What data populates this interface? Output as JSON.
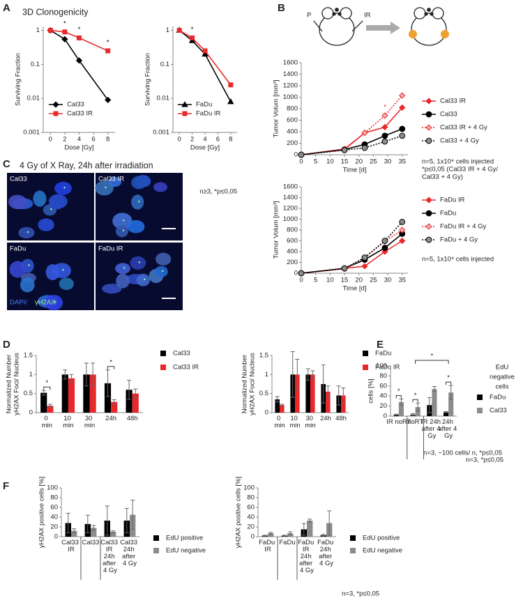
{
  "panel_labels": [
    "A",
    "B",
    "C",
    "D",
    "E",
    "F"
  ],
  "diagram": {
    "labels": [
      "P",
      "IR"
    ]
  },
  "micrographs": {
    "title": "4 Gy of X Ray, 24h after irradiation",
    "labels": [
      "Cal33",
      "Cal33 IR",
      "FaDu",
      "FaDu IR"
    ],
    "stain": [
      "DAPI/",
      "γH2AX"
    ]
  },
  "chart_data": [
    {
      "type": "line",
      "title": "3D Clonogenicity",
      "x": [
        0,
        2,
        4,
        8
      ],
      "xlim": [
        -1,
        9
      ],
      "xticks": [
        0,
        2,
        4,
        6,
        8
      ],
      "yscale": "log",
      "ylim": [
        0.001,
        1.3
      ],
      "yticks": [
        0.001,
        0.01,
        0.1,
        1
      ],
      "xlabel": "Dose [Gy]",
      "ylabel": "Surviving Fraction",
      "legend": "lower left",
      "significance_marker": "*",
      "significant": [
        false,
        true,
        true,
        true
      ],
      "significance_color": "#000000",
      "series": [
        {
          "name": "Cal33",
          "color": "#000000",
          "marker": "diamond",
          "marker_fill": "#000000",
          "values": [
            1,
            0.55,
            0.13,
            0.009
          ]
        },
        {
          "name": "Cal33 IR",
          "color": "#e8282b",
          "marker": "square",
          "marker_fill": "#e8282b",
          "values": [
            1,
            0.9,
            0.6,
            0.25
          ]
        }
      ]
    },
    {
      "type": "line",
      "x": [
        0,
        2,
        4,
        8
      ],
      "xlim": [
        -1,
        9
      ],
      "xticks": [
        0,
        2,
        4,
        6,
        8
      ],
      "yscale": "log",
      "ylim": [
        0.001,
        1.3
      ],
      "yticks": [
        0.001,
        0.01,
        0.1,
        1
      ],
      "xlabel": "Dose [Gy]",
      "ylabel": "Surviving Fraction",
      "legend": "lower left",
      "significance_marker": "*",
      "significant": [
        false,
        true,
        false,
        false
      ],
      "significance_color": "#000000",
      "note": [
        "n≥3, *p≤0,05"
      ],
      "series": [
        {
          "name": "FaDu",
          "color": "#000000",
          "marker": "triangle",
          "marker_fill": "#000000",
          "values": [
            1,
            0.5,
            0.2,
            0.008
          ]
        },
        {
          "name": "FaDu IR",
          "color": "#e8282b",
          "marker": "square",
          "marker_fill": "#e8282b",
          "values": [
            1,
            0.6,
            0.25,
            0.025
          ]
        }
      ]
    },
    {
      "type": "line",
      "x": [
        0,
        15,
        22,
        29,
        35
      ],
      "xlim": [
        0,
        37
      ],
      "xticks": [
        0,
        5,
        10,
        15,
        20,
        25,
        30,
        35
      ],
      "ylim": [
        0,
        1600
      ],
      "yticks": [
        0,
        200,
        400,
        600,
        800,
        1000,
        1200,
        1400,
        1600
      ],
      "xlabel": "Time [d]",
      "ylabel": "Tumor Volum [mm³]",
      "legend": "right",
      "significance_marker": "*",
      "significant": [
        false,
        false,
        false,
        true,
        false
      ],
      "significance_color": "#e8282b",
      "note": [
        "n=5, 1x10⁴  cells injected",
        "*p≤0,05 (Cal33 IR + 4 Gy/",
        "Cal33 + 4 Gy)"
      ],
      "series": [
        {
          "name": "Cal33 IR",
          "color": "#e8282b",
          "marker": "diamond",
          "marker_fill": "#e8282b",
          "values": [
            0,
            100,
            380,
            480,
            820
          ]
        },
        {
          "name": "Cal33",
          "color": "#000000",
          "marker": "circle",
          "marker_fill": "#000000",
          "values": [
            0,
            90,
            180,
            330,
            450
          ]
        },
        {
          "name": "Cal33 IR + 4 Gy",
          "color": "#e8282b",
          "dash": true,
          "marker": "diamond",
          "marker_fill": "#f7b0b0",
          "values": [
            0,
            90,
            380,
            680,
            1030
          ]
        },
        {
          "name": "Cal33 + 4 Gy",
          "color": "#000000",
          "dash": true,
          "marker": "circle",
          "marker_fill": "#8c8c8c",
          "values": [
            0,
            80,
            120,
            230,
            330
          ]
        }
      ]
    },
    {
      "type": "line",
      "x": [
        0,
        15,
        22,
        29,
        35
      ],
      "xlim": [
        0,
        37
      ],
      "xticks": [
        0,
        5,
        10,
        15,
        20,
        25,
        30,
        35
      ],
      "ylim": [
        0,
        1600
      ],
      "yticks": [
        0,
        200,
        400,
        600,
        800,
        1000,
        1200,
        1400,
        1600
      ],
      "xlabel": "Time [d]",
      "ylabel": "Tumor Volum [mm³]",
      "legend": "right",
      "note": [
        "n=5, 1x10⁴  cells injected"
      ],
      "series": [
        {
          "name": "FaDu IR",
          "color": "#e8282b",
          "marker": "diamond",
          "marker_fill": "#e8282b",
          "values": [
            0,
            90,
            130,
            400,
            600
          ]
        },
        {
          "name": "FaDu",
          "color": "#000000",
          "marker": "circle",
          "marker_fill": "#000000",
          "values": [
            0,
            90,
            250,
            470,
            730
          ]
        },
        {
          "name": "FaDu IR + 4 Gy",
          "color": "#e8282b",
          "dash": true,
          "marker": "diamond",
          "marker_fill": "#f7b0b0",
          "values": [
            0,
            80,
            290,
            590,
            800
          ]
        },
        {
          "name": "FaDu + 4 Gy",
          "color": "#000000",
          "dash": true,
          "marker": "circle",
          "marker_fill": "#8c8c8c",
          "values": [
            0,
            90,
            290,
            600,
            950
          ]
        }
      ]
    },
    {
      "type": "bar",
      "categories": [
        "0 min",
        "10 min",
        "30 min",
        "24h",
        "48h"
      ],
      "ylim": [
        0,
        1.5
      ],
      "yticks": [
        0,
        0.5,
        1,
        1.5
      ],
      "ylabel": [
        "Normalized Number",
        "yH2AX Foci/ Nucleus"
      ],
      "legend": "right",
      "significance_marker": "*",
      "significant": [
        true,
        false,
        false,
        true,
        false
      ],
      "series": [
        {
          "name": "Cal33",
          "color": "#000000",
          "values": [
            0.52,
            1,
            1,
            0.77,
            0.6
          ],
          "errors": [
            0.06,
            0.12,
            0.3,
            0.35,
            0.25
          ]
        },
        {
          "name": "Cal33 IR",
          "color": "#e8282b",
          "values": [
            0.18,
            0.9,
            1,
            0.28,
            0.5
          ],
          "errors": [
            0.04,
            0.1,
            0.3,
            0.06,
            0.12
          ]
        }
      ]
    },
    {
      "type": "bar",
      "categories": [
        "0 min",
        "10 min",
        "30 min",
        "24h",
        "48h"
      ],
      "ylim": [
        0,
        1.5
      ],
      "yticks": [
        0,
        0.5,
        1,
        1.5
      ],
      "ylabel": [
        "Normalized Number",
        "yH2AX Foci/ Nucleus"
      ],
      "legend": "right",
      "note": [
        "n=3,  ~100 cells/ n, *p≤0,05"
      ],
      "series": [
        {
          "name": "FaDu",
          "color": "#000000",
          "values": [
            0.35,
            1,
            1,
            0.75,
            0.45
          ],
          "errors": [
            0.07,
            0.6,
            0.15,
            0.5,
            0.25
          ]
        },
        {
          "name": "FaDu IR",
          "color": "#e8282b",
          "values": [
            0.2,
            1,
            1,
            0.55,
            0.45
          ],
          "errors": [
            0.02,
            0.4,
            0.1,
            0.15,
            0.2
          ]
        }
      ]
    },
    {
      "type": "bar",
      "categories": [
        "IR noRT",
        "noRT",
        "IR 24h after 4 Gy",
        "24h after 4 Gy"
      ],
      "ylim": [
        0,
        100
      ],
      "yticks": [
        0,
        20,
        40,
        60,
        80,
        100
      ],
      "ylabel": "cells [%]",
      "legend": "right",
      "legend_title": [
        "EdU",
        "negative",
        "cells"
      ],
      "significance_marker": "*",
      "significant": [
        true,
        true,
        false,
        true
      ],
      "significant_pairs": [
        [
          1,
          3
        ]
      ],
      "note": [
        "n=3, *p≤0,05"
      ],
      "series": [
        {
          "name": "FaDu",
          "color": "#000000",
          "values": [
            3,
            3,
            22,
            8
          ],
          "errors": [
            1,
            2,
            15,
            1
          ]
        },
        {
          "name": "Cal33",
          "color": "#8c8c8c",
          "values": [
            28,
            18,
            54,
            47
          ],
          "errors": [
            6,
            8,
            5,
            14
          ]
        }
      ]
    },
    {
      "type": "bar",
      "categories": [
        "Cal33 IR",
        "Cal33",
        "Cal33 IR 24h after 4 Gy",
        "Cal33 24h after 4 Gy"
      ],
      "ylim": [
        0,
        100
      ],
      "yticks": [
        0,
        20,
        40,
        60,
        80,
        100
      ],
      "ylabel": "yH2AX positive cells [%]",
      "legend": "right",
      "series": [
        {
          "name": "EdU positive",
          "color": "#000000",
          "values": [
            28,
            26,
            33,
            33
          ],
          "errors": [
            20,
            18,
            30,
            25
          ]
        },
        {
          "name": "EdU negative",
          "color": "#8c8c8c",
          "values": [
            12,
            18,
            10,
            45
          ],
          "errors": [
            4,
            5,
            2,
            30
          ]
        }
      ]
    },
    {
      "type": "bar",
      "categories": [
        "FaDu IR",
        "FaDu",
        "FaDu IR 24h after 4 Gy",
        "FaDu 24h after 4 Gy"
      ],
      "ylim": [
        0,
        100
      ],
      "yticks": [
        0,
        20,
        40,
        60,
        80,
        100
      ],
      "ylabel": "yH2AX positive cells [%]",
      "legend": "right",
      "note": [
        "n=3, *p≤0,05"
      ],
      "series": [
        {
          "name": "EdU positive",
          "color": "#000000",
          "values": [
            2,
            2,
            15,
            3
          ],
          "errors": [
            1,
            1,
            12,
            2
          ]
        },
        {
          "name": "EdU negative",
          "color": "#8c8c8c",
          "values": [
            7,
            7,
            33,
            28
          ],
          "errors": [
            2,
            3,
            3,
            25
          ]
        }
      ]
    }
  ]
}
